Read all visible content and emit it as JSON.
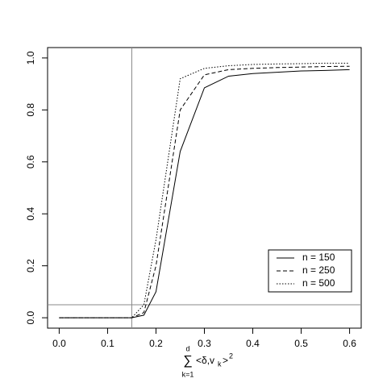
{
  "chart_data": {
    "type": "line",
    "xlabel": {
      "sum": "∑",
      "upper": "d",
      "lower": "k=1",
      "body": "<δ,v",
      "sub": "k",
      "close": ">",
      "sup": "2"
    },
    "x": [
      0,
      0.05,
      0.1,
      0.15,
      0.175,
      0.2,
      0.25,
      0.3,
      0.35,
      0.4,
      0.45,
      0.5,
      0.55,
      0.6
    ],
    "series": [
      {
        "name": "n = 150",
        "color": "#000000",
        "dash": "solid",
        "values": [
          0,
          0,
          0,
          0,
          0.01,
          0.1,
          0.64,
          0.885,
          0.93,
          0.94,
          0.945,
          0.95,
          0.952,
          0.955
        ]
      },
      {
        "name": "n = 250",
        "color": "#000000",
        "dash": "dashed",
        "values": [
          0,
          0,
          0,
          0,
          0.02,
          0.2,
          0.8,
          0.935,
          0.955,
          0.96,
          0.963,
          0.965,
          0.967,
          0.968
        ]
      },
      {
        "name": "n = 500",
        "color": "#000000",
        "dash": "dotted",
        "values": [
          0,
          0,
          0,
          0,
          0.05,
          0.3,
          0.92,
          0.96,
          0.97,
          0.975,
          0.977,
          0.978,
          0.98,
          0.98
        ]
      }
    ],
    "vlines": [
      0.15
    ],
    "hlines": [
      0.05
    ],
    "refline_color": "#888888",
    "xlim": [
      -0.024,
      0.624
    ],
    "ylim": [
      -0.04,
      1.04
    ],
    "xticks": [
      {
        "value": 0,
        "label": "0.0"
      },
      0.1,
      0.2,
      0.3,
      0.4,
      0.5,
      0.6
    ],
    "yticks": [
      {
        "value": 0,
        "label": "0.0"
      },
      0.2,
      0.4,
      0.6,
      0.8,
      {
        "value": 1,
        "label": "1.0"
      }
    ],
    "legend": "bottom-right"
  }
}
